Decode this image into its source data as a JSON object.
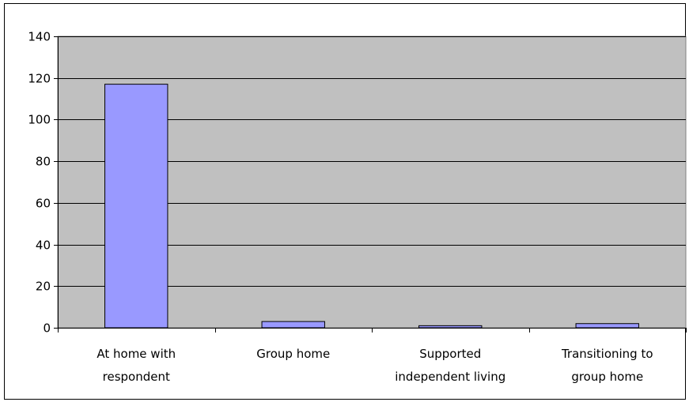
{
  "chart_data": {
    "type": "bar",
    "title": "",
    "xlabel": "",
    "ylabel": "",
    "categories": [
      [
        "At home with",
        "respondent"
      ],
      [
        "Group home"
      ],
      [
        "Supported",
        "independent living"
      ],
      [
        "Transitioning to",
        "group home"
      ]
    ],
    "values": [
      117,
      3,
      1,
      2
    ],
    "ylim": [
      0,
      140
    ],
    "yticks": [
      0,
      20,
      40,
      60,
      80,
      100,
      120,
      140
    ],
    "grid": true,
    "legend": "none",
    "colors": {
      "plot_background": "#c0c0c0",
      "bar_fill": "#9999ff",
      "bar_stroke": "#000000",
      "gridline": "#000000"
    }
  }
}
